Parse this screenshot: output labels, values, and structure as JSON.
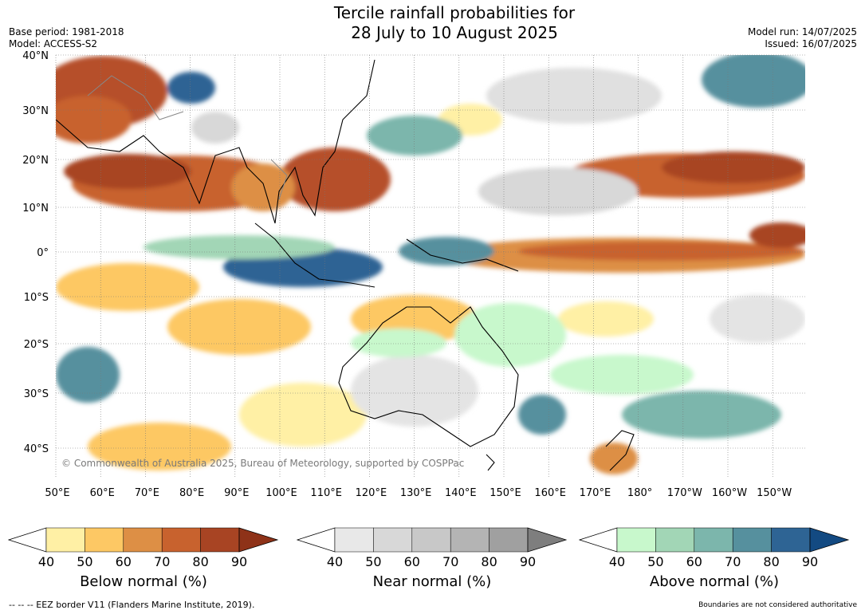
{
  "title_line1": "Tercile rainfall probabilities for",
  "title_line2": "28 July to 10 August 2025",
  "meta_left": {
    "base_period": "Base period: 1981-2018",
    "model": "Model: ACCESS-S2"
  },
  "meta_right": {
    "model_run": "Model run: 14/07/2025",
    "issued": "Issued: 16/07/2025"
  },
  "map": {
    "lat_labels": [
      "40°N",
      "30°N",
      "20°N",
      "10°N",
      "0°",
      "10°S",
      "20°S",
      "30°S",
      "40°S"
    ],
    "lon_labels": [
      "50°E",
      "60°E",
      "70°E",
      "80°E",
      "90°E",
      "100°E",
      "110°E",
      "120°E",
      "130°E",
      "140°E",
      "150°E",
      "160°E",
      "170°E",
      "180°",
      "170°W",
      "160°W",
      "150°W"
    ],
    "copyright": "© Commonwealth of Australia 2025, Bureau of Meteorology, supported by COSPPac"
  },
  "legends": [
    {
      "title": "Below normal (%)",
      "ticks": [
        "40",
        "50",
        "60",
        "70",
        "80",
        "90"
      ],
      "colors": [
        "#fff0a5",
        "#fdc864",
        "#dd8f45",
        "#c8622e",
        "#a84423"
      ],
      "end_color": "#8e3218"
    },
    {
      "title": "Near normal (%)",
      "ticks": [
        "40",
        "50",
        "60",
        "70",
        "80",
        "90"
      ],
      "colors": [
        "#e8e8e8",
        "#d8d8d8",
        "#c8c8c8",
        "#b4b4b4",
        "#a0a0a0"
      ],
      "end_color": "#7e7e7e"
    },
    {
      "title": "Above normal (%)",
      "ticks": [
        "40",
        "50",
        "60",
        "70",
        "80",
        "90"
      ],
      "colors": [
        "#c8f8cc",
        "#a2d6b6",
        "#7cb6ac",
        "#56909e",
        "#2e6494"
      ],
      "end_color": "#134a82"
    }
  ],
  "footer_left": "--  --  -- EEZ border V11 (Flanders Marine Institute, 2019).",
  "footer_right": "Boundaries are not considered authoritative",
  "colors": {
    "land_outline": "#000000",
    "border_grey": "#888888"
  }
}
